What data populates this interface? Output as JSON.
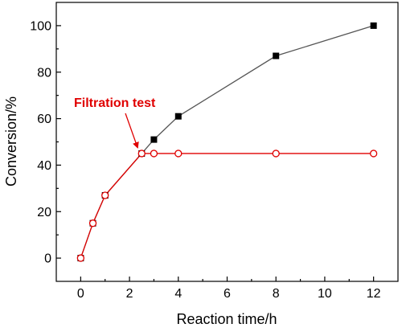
{
  "chart_data": {
    "type": "line",
    "xlabel": "Reaction time/h",
    "ylabel": "Conversion/%",
    "xlim": [
      -1,
      13
    ],
    "ylim": [
      -10,
      110
    ],
    "x_ticks": [
      0,
      2,
      4,
      6,
      8,
      10,
      12
    ],
    "y_ticks": [
      0,
      20,
      40,
      60,
      80,
      100
    ],
    "grid": false,
    "series": [
      {
        "color": "#555555",
        "marker": "filled-square",
        "marker_color": "#000000",
        "x": [
          0,
          0.5,
          1,
          2.5,
          3,
          4,
          8,
          12
        ],
        "y": [
          0,
          15,
          27,
          45,
          51,
          61,
          87,
          100
        ]
      },
      {
        "color": "#e00000",
        "marker": "open-circle",
        "marker_color": "#e00000",
        "x": [
          0,
          0.5,
          1,
          2.5,
          3,
          4,
          8,
          12
        ],
        "y": [
          0,
          15,
          27,
          45,
          45,
          45,
          45,
          45
        ]
      }
    ],
    "annotations": [
      {
        "text": "Filtration test",
        "color": "#e00000",
        "points_to": {
          "x": 2.5,
          "y": 45
        }
      }
    ]
  }
}
